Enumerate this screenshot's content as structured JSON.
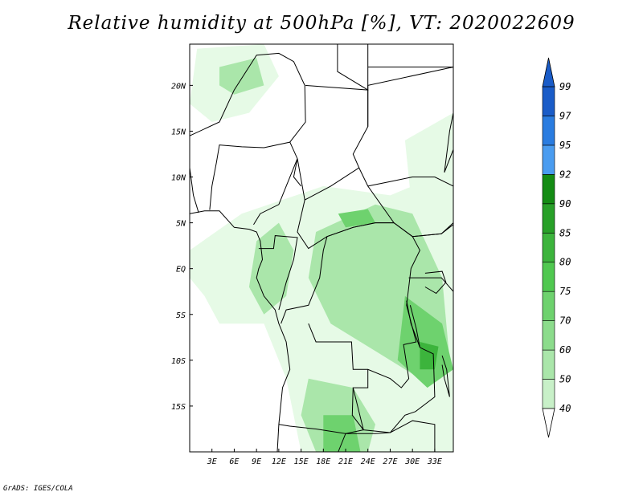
{
  "title": "Relative humidity at 500hPa [%], VT: 2020022609",
  "credit": "GrADS: IGES/COLA",
  "map": {
    "lon_range": [
      0,
      35.5
    ],
    "lat_range": [
      -20,
      24.5
    ],
    "x_ticks": [
      "3E",
      "6E",
      "9E",
      "12E",
      "15E",
      "18E",
      "21E",
      "24E",
      "27E",
      "30E",
      "33E"
    ],
    "x_tick_values": [
      3,
      6,
      9,
      12,
      15,
      18,
      21,
      24,
      27,
      30,
      33
    ],
    "y_ticks": [
      "20N",
      "15N",
      "10N",
      "5N",
      "EQ",
      "5S",
      "10S",
      "15S"
    ],
    "y_tick_values": [
      20,
      15,
      10,
      5,
      0,
      -5,
      -10,
      -15
    ]
  },
  "colorbar": {
    "levels": [
      "40",
      "50",
      "60",
      "70",
      "75",
      "80",
      "85",
      "90",
      "92",
      "95",
      "97",
      "99"
    ],
    "colors": [
      "#e6fae6",
      "#c8f0c8",
      "#aae6aa",
      "#8cdc8c",
      "#6ed26e",
      "#50c850",
      "#3cb43c",
      "#28a028",
      "#148c14",
      "#4a9cf0",
      "#2a7ce0",
      "#1a5cc8"
    ]
  },
  "colors": {
    "land_line": "#000000",
    "humid_light": "#e6fae6",
    "humid_mid": "#aae6aa",
    "humid_high": "#6ed26e",
    "humid_max": "#3cb43c"
  }
}
